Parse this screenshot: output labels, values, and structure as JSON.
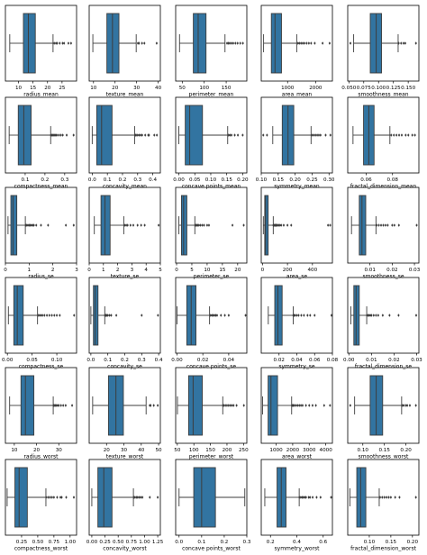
{
  "style": {
    "box_fill": "#3274a1",
    "line_color": "#3d3d3d",
    "frame_color": "#000000",
    "flier_color": "#3d3d3d"
  },
  "chart_data": [
    {
      "type": "box",
      "xlabel": "radius_mean",
      "xlim": [
        5.5,
        30
      ],
      "ticks": [
        10,
        15,
        20,
        25
      ],
      "tick_labels": [
        "10",
        "15",
        "20",
        "25"
      ],
      "box": {
        "whisker_low": 7,
        "q1": 11.7,
        "median": 13.4,
        "q3": 15.8,
        "whisker_high": 21.9
      },
      "outliers": [
        22.3,
        22.9,
        23.3,
        24.2,
        25.2,
        25.7,
        27.2,
        28.1
      ]
    },
    {
      "type": "box",
      "xlabel": "texture_mean",
      "xlim": [
        8,
        41
      ],
      "ticks": [
        10,
        20,
        30,
        40
      ],
      "tick_labels": [
        "10",
        "20",
        "30",
        "40"
      ],
      "box": {
        "whisker_low": 9.7,
        "q1": 16.2,
        "median": 18.8,
        "q3": 21.8,
        "whisker_high": 29.8
      },
      "outliers": [
        30.6,
        31.1,
        32.5,
        33.6,
        39.3
      ]
    },
    {
      "type": "box",
      "xlabel": "perimeter_mean",
      "xlim": [
        35,
        197
      ],
      "ticks": [
        50,
        100,
        150
      ],
      "tick_labels": [
        "50",
        "100",
        "150"
      ],
      "box": {
        "whisker_low": 43.8,
        "q1": 75.2,
        "median": 86.2,
        "q3": 104.1,
        "whisker_high": 147.3
      },
      "outliers": [
        152,
        155,
        158,
        162,
        166,
        171,
        176,
        182,
        188
      ]
    },
    {
      "type": "box",
      "xlabel": "area_mean",
      "xlim": [
        60,
        2600
      ],
      "ticks": [
        1000,
        2000
      ],
      "tick_labels": [
        "1000",
        "2000"
      ],
      "box": {
        "whisker_low": 143.5,
        "q1": 420.3,
        "median": 551.1,
        "q3": 782.7,
        "whisker_high": 1326
      },
      "outliers": [
        1370,
        1420,
        1480,
        1540,
        1600,
        1680,
        1760,
        1840,
        1970,
        2250,
        2500
      ]
    },
    {
      "type": "box",
      "xlabel": "smoothness_mean",
      "xlim": [
        0.048,
        0.168
      ],
      "ticks": [
        0.05,
        0.075,
        0.1,
        0.125,
        0.15
      ],
      "tick_labels": [
        "0.050",
        "0.075",
        "0.100",
        "0.125",
        "0.150"
      ],
      "box": {
        "whisker_low": 0.058,
        "q1": 0.086,
        "median": 0.096,
        "q3": 0.105,
        "whisker_high": 0.133
      },
      "outliers": [
        0.0526,
        0.134,
        0.138,
        0.142,
        0.145,
        0.163
      ]
    },
    {
      "type": "box",
      "xlabel": "compactness_mean",
      "xlim": [
        0,
        0.36
      ],
      "ticks": [
        0.1,
        0.2,
        0.3
      ],
      "tick_labels": [
        "0.1",
        "0.2",
        "0.3"
      ],
      "box": {
        "whisker_low": 0.019,
        "q1": 0.065,
        "median": 0.093,
        "q3": 0.13,
        "whisker_high": 0.229
      },
      "outliers": [
        0.23,
        0.235,
        0.24,
        0.245,
        0.25,
        0.255,
        0.26,
        0.27,
        0.28,
        0.29,
        0.31,
        0.345
      ]
    },
    {
      "type": "box",
      "xlabel": "concavity_mean",
      "xlim": [
        -0.02,
        0.45
      ],
      "ticks": [
        0,
        0.1,
        0.2,
        0.3,
        0.4
      ],
      "tick_labels": [
        "0.0",
        "0.1",
        "0.2",
        "0.3",
        "0.4"
      ],
      "box": {
        "whisker_low": 0,
        "q1": 0.03,
        "median": 0.062,
        "q3": 0.131,
        "whisker_high": 0.28
      },
      "outliers": [
        0.285,
        0.29,
        0.3,
        0.31,
        0.32,
        0.33,
        0.35,
        0.37,
        0.375,
        0.41,
        0.427
      ]
    },
    {
      "type": "box",
      "xlabel": "concave points_mean",
      "xlim": [
        -0.01,
        0.213
      ],
      "ticks": [
        0,
        0.05,
        0.1,
        0.15,
        0.2
      ],
      "tick_labels": [
        "0.00",
        "0.05",
        "0.10",
        "0.15",
        "0.20"
      ],
      "box": {
        "whisker_low": 0,
        "q1": 0.02,
        "median": 0.034,
        "q3": 0.074,
        "whisker_high": 0.153
      },
      "outliers": [
        0.156,
        0.16,
        0.165,
        0.175,
        0.185,
        0.2
      ]
    },
    {
      "type": "box",
      "xlabel": "symmetry_mean",
      "xlim": [
        0.1,
        0.31
      ],
      "ticks": [
        0.1,
        0.15,
        0.2,
        0.25,
        0.3
      ],
      "tick_labels": [
        "0.10",
        "0.15",
        "0.20",
        "0.25",
        "0.30"
      ],
      "box": {
        "whisker_low": 0.134,
        "q1": 0.162,
        "median": 0.179,
        "q3": 0.196,
        "whisker_high": 0.247
      },
      "outliers": [
        0.106,
        0.117,
        0.25,
        0.255,
        0.26,
        0.265,
        0.27,
        0.275,
        0.29,
        0.304
      ]
    },
    {
      "type": "box",
      "xlabel": "fractal_dimension_mean",
      "xlim": [
        0.046,
        0.1
      ],
      "ticks": [
        0.06,
        0.08
      ],
      "tick_labels": [
        "0.06",
        "0.08"
      ],
      "box": {
        "whisker_low": 0.05,
        "q1": 0.058,
        "median": 0.062,
        "q3": 0.066,
        "whisker_high": 0.078
      },
      "outliers": [
        0.079,
        0.081,
        0.083,
        0.085,
        0.087,
        0.09,
        0.092,
        0.095,
        0.097
      ]
    },
    {
      "type": "box",
      "xlabel": "radius_se",
      "xlim": [
        0,
        3
      ],
      "ticks": [
        0,
        1,
        2,
        3
      ],
      "tick_labels": [
        "0",
        "1",
        "2",
        "3"
      ],
      "box": {
        "whisker_low": 0.11,
        "q1": 0.23,
        "median": 0.32,
        "q3": 0.48,
        "whisker_high": 0.84
      },
      "outliers": [
        0.86,
        0.9,
        0.95,
        1,
        1.05,
        1.1,
        1.15,
        1.2,
        1.3,
        1.5,
        1.8,
        2.55,
        2.88
      ]
    },
    {
      "type": "box",
      "xlabel": "texture_se",
      "xlim": [
        0,
        5
      ],
      "ticks": [
        0,
        1,
        2,
        3,
        4,
        5
      ],
      "tick_labels": [
        "0",
        "1",
        "2",
        "3",
        "4",
        "5"
      ],
      "box": {
        "whisker_low": 0.36,
        "q1": 0.83,
        "median": 1.11,
        "q3": 1.47,
        "whisker_high": 2.43
      },
      "outliers": [
        2.5,
        2.6,
        2.7,
        2.9,
        3.1,
        3.4,
        3.65,
        3.9,
        4.88
      ]
    },
    {
      "type": "box",
      "xlabel": "perimeter_se",
      "xlim": [
        -0.3,
        23
      ],
      "ticks": [
        0,
        5,
        10,
        15,
        20
      ],
      "tick_labels": [
        "0",
        "5",
        "10",
        "15",
        "20"
      ],
      "box": {
        "whisker_low": 0.76,
        "q1": 1.6,
        "median": 2.29,
        "q3": 3.36,
        "whisker_high": 5.98
      },
      "outliers": [
        6.1,
        6.3,
        6.6,
        6.9,
        7.3,
        7.8,
        8.4,
        9,
        10,
        10.6,
        18.3,
        21.98
      ]
    },
    {
      "type": "box",
      "xlabel": "area_se",
      "xlim": [
        -10,
        560
      ],
      "ticks": [
        0,
        200,
        400
      ],
      "tick_labels": [
        "0",
        "200",
        "400"
      ],
      "box": {
        "whisker_low": 6.8,
        "q1": 17.9,
        "median": 24.5,
        "q3": 45.2,
        "whisker_high": 86.2
      },
      "outliers": [
        87,
        90,
        95,
        100,
        105,
        110,
        115,
        120,
        130,
        140,
        150,
        170,
        200,
        230,
        525,
        542
      ]
    },
    {
      "type": "box",
      "xlabel": "smoothness_se",
      "xlim": [
        0,
        0.032
      ],
      "ticks": [
        0.01,
        0.02,
        0.03
      ],
      "tick_labels": [
        "0.01",
        "0.02",
        "0.03"
      ],
      "box": {
        "whisker_low": 0.0017,
        "q1": 0.0052,
        "median": 0.0064,
        "q3": 0.0081,
        "whisker_high": 0.0127
      },
      "outliers": [
        0.013,
        0.014,
        0.015,
        0.016,
        0.017,
        0.018,
        0.02,
        0.021,
        0.023,
        0.031
      ]
    },
    {
      "type": "box",
      "xlabel": "compactness_se",
      "xlim": [
        -0.004,
        0.14
      ],
      "ticks": [
        0,
        0.05,
        0.1
      ],
      "tick_labels": [
        "0.00",
        "0.05",
        "0.10"
      ],
      "box": {
        "whisker_low": 0.002,
        "q1": 0.013,
        "median": 0.02,
        "q3": 0.032,
        "whisker_high": 0.061
      },
      "outliers": [
        0.062,
        0.065,
        0.068,
        0.071,
        0.075,
        0.08,
        0.085,
        0.09,
        0.095,
        0.1,
        0.106,
        0.135
      ]
    },
    {
      "type": "box",
      "xlabel": "concavity_se",
      "xlim": [
        -0.01,
        0.41
      ],
      "ticks": [
        0,
        0.1,
        0.2,
        0.3,
        0.4
      ],
      "tick_labels": [
        "0.0",
        "0.1",
        "0.2",
        "0.3",
        "0.4"
      ],
      "box": {
        "whisker_low": 0,
        "q1": 0.015,
        "median": 0.026,
        "q3": 0.042,
        "whisker_high": 0.082
      },
      "outliers": [
        0.083,
        0.086,
        0.09,
        0.095,
        0.1,
        0.11,
        0.12,
        0.15,
        0.3,
        0.396
      ]
    },
    {
      "type": "box",
      "xlabel": "concave points_se",
      "xlim": [
        -0.001,
        0.054
      ],
      "ticks": [
        0,
        0.02,
        0.04
      ],
      "tick_labels": [
        "0.00",
        "0.02",
        "0.04"
      ],
      "box": {
        "whisker_low": 0,
        "q1": 0.0076,
        "median": 0.011,
        "q3": 0.0147,
        "whisker_high": 0.0252
      },
      "outliers": [
        0.026,
        0.027,
        0.028,
        0.029,
        0.03,
        0.031,
        0.034,
        0.037,
        0.04,
        0.053
      ]
    },
    {
      "type": "box",
      "xlabel": "symmetry_se",
      "xlim": [
        0,
        0.08
      ],
      "ticks": [
        0.02,
        0.04,
        0.06,
        0.08
      ],
      "tick_labels": [
        "0.02",
        "0.04",
        "0.06",
        "0.08"
      ],
      "box": {
        "whisker_low": 0.0079,
        "q1": 0.0152,
        "median": 0.0187,
        "q3": 0.0235,
        "whisker_high": 0.0359
      },
      "outliers": [
        0.036,
        0.037,
        0.038,
        0.04,
        0.042,
        0.045,
        0.048,
        0.052,
        0.055,
        0.06,
        0.079
      ]
    },
    {
      "type": "box",
      "xlabel": "fractal_dimension_se",
      "xlim": [
        -0.0005,
        0.031
      ],
      "ticks": [
        0,
        0.01,
        0.02,
        0.03
      ],
      "tick_labels": [
        "0.00",
        "0.01",
        "0.02",
        "0.03"
      ],
      "box": {
        "whisker_low": 0.0009,
        "q1": 0.0022,
        "median": 0.0032,
        "q3": 0.0046,
        "whisker_high": 0.0079
      },
      "outliers": [
        0.008,
        0.0085,
        0.009,
        0.0095,
        0.01,
        0.011,
        0.012,
        0.013,
        0.015,
        0.018,
        0.022,
        0.0298
      ]
    },
    {
      "type": "box",
      "xlabel": "radius_worst",
      "xlim": [
        6,
        38
      ],
      "ticks": [
        10,
        20,
        30
      ],
      "tick_labels": [
        "10",
        "20",
        "30"
      ],
      "box": {
        "whisker_low": 7.9,
        "q1": 13,
        "median": 15,
        "q3": 18.8,
        "whisker_high": 27.5
      },
      "outliers": [
        27.7,
        28,
        28.5,
        29,
        29.5,
        30,
        31,
        32,
        33.1,
        36
      ]
    },
    {
      "type": "box",
      "xlabel": "texture_worst",
      "xlim": [
        10,
        51
      ],
      "ticks": [
        20,
        30,
        40,
        50
      ],
      "tick_labels": [
        "20",
        "30",
        "40",
        "50"
      ],
      "box": {
        "whisker_low": 12,
        "q1": 21.1,
        "median": 25.4,
        "q3": 29.7,
        "whisker_high": 42.8
      },
      "outliers": [
        44.9,
        45.4,
        47.2,
        49.5
      ]
    },
    {
      "type": "box",
      "xlabel": "perimeter_worst",
      "xlim": [
        45,
        260
      ],
      "ticks": [
        50,
        100,
        150,
        200,
        250
      ],
      "tick_labels": [
        "50",
        "100",
        "150",
        "200",
        "250"
      ],
      "box": {
        "whisker_low": 50.4,
        "q1": 84.1,
        "median": 97.7,
        "q3": 125.4,
        "whisker_high": 187.3
      },
      "outliers": [
        188,
        190,
        195,
        200,
        205,
        210,
        215,
        220,
        229,
        251
      ]
    },
    {
      "type": "box",
      "xlabel": "area_worst",
      "xlim": [
        100,
        4400
      ],
      "ticks": [
        1000,
        2000,
        3000,
        4000
      ],
      "tick_labels": [
        "1000",
        "2000",
        "3000",
        "4000"
      ],
      "box": {
        "whisker_low": 185.2,
        "q1": 515.3,
        "median": 686.5,
        "q3": 1084,
        "whisker_high": 1937
      },
      "outliers": [
        1950,
        2000,
        2050,
        2100,
        2200,
        2300,
        2400,
        2500,
        2600,
        2800,
        3000,
        3200,
        3400,
        3900,
        4254
      ]
    },
    {
      "type": "box",
      "xlabel": "smoothness_worst",
      "xlim": [
        0.065,
        0.23
      ],
      "ticks": [
        0.1,
        0.15,
        0.2
      ],
      "tick_labels": [
        "0.10",
        "0.15",
        "0.20"
      ],
      "box": {
        "whisker_low": 0.081,
        "q1": 0.117,
        "median": 0.131,
        "q3": 0.146,
        "whisker_high": 0.19
      },
      "outliers": [
        0.071,
        0.192,
        0.195,
        0.2,
        0.203,
        0.209,
        0.223
      ]
    },
    {
      "type": "box",
      "xlabel": "compactness_worst",
      "xlim": [
        0,
        1.1
      ],
      "ticks": [
        0.25,
        0.5,
        0.75,
        1
      ],
      "tick_labels": [
        "0.25",
        "0.50",
        "0.75",
        "1.00"
      ],
      "box": {
        "whisker_low": 0.027,
        "q1": 0.147,
        "median": 0.212,
        "q3": 0.339,
        "whisker_high": 0.626
      },
      "outliers": [
        0.63,
        0.66,
        0.69,
        0.72,
        0.75,
        0.8,
        0.85,
        0.87,
        0.94,
        1.058
      ]
    },
    {
      "type": "box",
      "xlabel": "concavity_worst",
      "xlim": [
        -0.05,
        1.3
      ],
      "ticks": [
        0,
        0.25,
        0.5,
        0.75,
        1,
        1.25
      ],
      "tick_labels": [
        "0.00",
        "0.25",
        "0.50",
        "0.75",
        "1.00",
        "1.25"
      ],
      "box": {
        "whisker_low": 0,
        "q1": 0.115,
        "median": 0.227,
        "q3": 0.383,
        "whisker_high": 0.789
      },
      "outliers": [
        0.8,
        0.82,
        0.85,
        0.87,
        0.9,
        0.93,
        0.96,
        1.1,
        1.25
      ]
    },
    {
      "type": "box",
      "xlabel": "concave points_worst",
      "xlim": [
        -0.015,
        0.3
      ],
      "ticks": [
        0,
        0.1,
        0.2,
        0.3
      ],
      "tick_labels": [
        "0.0",
        "0.1",
        "0.2",
        "0.3"
      ],
      "box": {
        "whisker_low": 0,
        "q1": 0.065,
        "median": 0.1,
        "q3": 0.161,
        "whisker_high": 0.291
      },
      "outliers": []
    },
    {
      "type": "box",
      "xlabel": "symmetry_worst",
      "xlim": [
        0.13,
        0.67
      ],
      "ticks": [
        0.2,
        0.4,
        0.6
      ],
      "tick_labels": [
        "0.2",
        "0.4",
        "0.6"
      ],
      "box": {
        "whisker_low": 0.157,
        "q1": 0.25,
        "median": 0.282,
        "q3": 0.318,
        "whisker_high": 0.418
      },
      "outliers": [
        0.42,
        0.43,
        0.44,
        0.45,
        0.46,
        0.47,
        0.49,
        0.5,
        0.52,
        0.55,
        0.58,
        0.66
      ]
    },
    {
      "type": "box",
      "xlabel": "fractal_dimension_worst",
      "xlim": [
        0.05,
        0.215
      ],
      "ticks": [
        0.1,
        0.15,
        0.2
      ],
      "tick_labels": [
        "0.10",
        "0.15",
        "0.20"
      ],
      "box": {
        "whisker_low": 0.055,
        "q1": 0.071,
        "median": 0.08,
        "q3": 0.092,
        "whisker_high": 0.123
      },
      "outliers": [
        0.125,
        0.13,
        0.135,
        0.14,
        0.145,
        0.15,
        0.16,
        0.17,
        0.208
      ]
    }
  ]
}
